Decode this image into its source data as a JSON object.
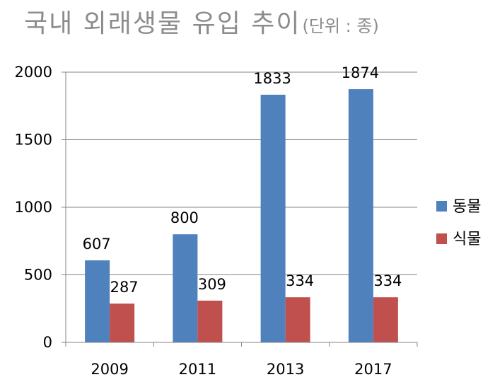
{
  "title": {
    "main": "국내 외래생물 유입 추이",
    "unit": "(단위 : 종)"
  },
  "colors": {
    "animal": "#4F81BD",
    "plant": "#C0504D",
    "axis": "#868686",
    "grid": "#868686"
  },
  "chart_data": {
    "type": "bar",
    "title": "국내 외래생물 유입 추이",
    "subtitle": "(단위 : 종)",
    "categories": [
      "2009",
      "2011",
      "2013",
      "2017"
    ],
    "series": [
      {
        "name": "동물",
        "values": [
          607,
          800,
          1833,
          1874
        ]
      },
      {
        "name": "식물",
        "values": [
          287,
          309,
          334,
          334
        ]
      }
    ],
    "ylim": [
      0,
      2000
    ],
    "yticks": [
      0,
      500,
      1000,
      1500,
      2000
    ],
    "grid": true,
    "legend": "right",
    "data_labels": true
  }
}
